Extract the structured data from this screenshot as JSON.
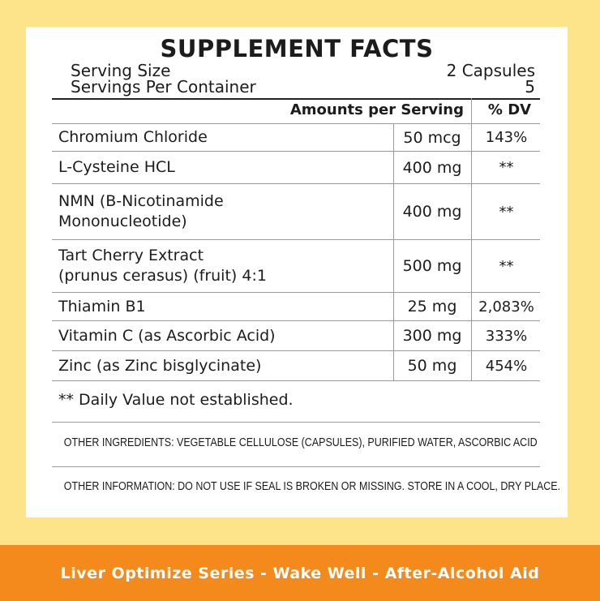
{
  "title": "SUPPLEMENT FACTS",
  "serving": {
    "size_label": "Serving Size",
    "size_value": "2 Capsules",
    "per_container_label": "Servings Per Container",
    "per_container_value": "5"
  },
  "table": {
    "header_amount": "Amounts per Serving",
    "header_dv": "% DV",
    "rows": [
      {
        "name": "Chromium Chloride",
        "amount": "50 mcg",
        "dv": "143%"
      },
      {
        "name": "L-Cysteine HCL",
        "amount": "400 mg",
        "dv": "**"
      },
      {
        "name_line1": "NMN (B-Nicotinamide",
        "name_line2": "Mononucleotide)",
        "amount": "400 mg",
        "dv": "**"
      },
      {
        "name_line1": "Tart Cherry Extract",
        "name_line2": "(prunus cerasus) (fruit) 4:1",
        "amount": "500 mg",
        "dv": "**"
      },
      {
        "name": "Thiamin B1",
        "amount": "25 mg",
        "dv": "2,083%"
      },
      {
        "name": "Vitamin C (as Ascorbic Acid)",
        "amount": "300 mg",
        "dv": "333%"
      },
      {
        "name": "Zinc (as Zinc bisglycinate)",
        "amount": "50 mg",
        "dv": "454%"
      }
    ]
  },
  "footnote": "** Daily Value not established.",
  "other_ingredients": "OTHER INGREDIENTS:  VEGETABLE CELLULOSE (CAPSULES), PURIFIED WATER, ASCORBIC ACID",
  "other_information": "OTHER INFORMATION:  DO NOT USE IF SEAL IS BROKEN OR MISSING. STORE IN A COOL, DRY PLACE.",
  "banner": "Liver Optimize Series - Wake Well - After-Alcohol Aid",
  "colors": {
    "background": "#fde38a",
    "panel": "#ffffff",
    "banner": "#f48a1c"
  }
}
